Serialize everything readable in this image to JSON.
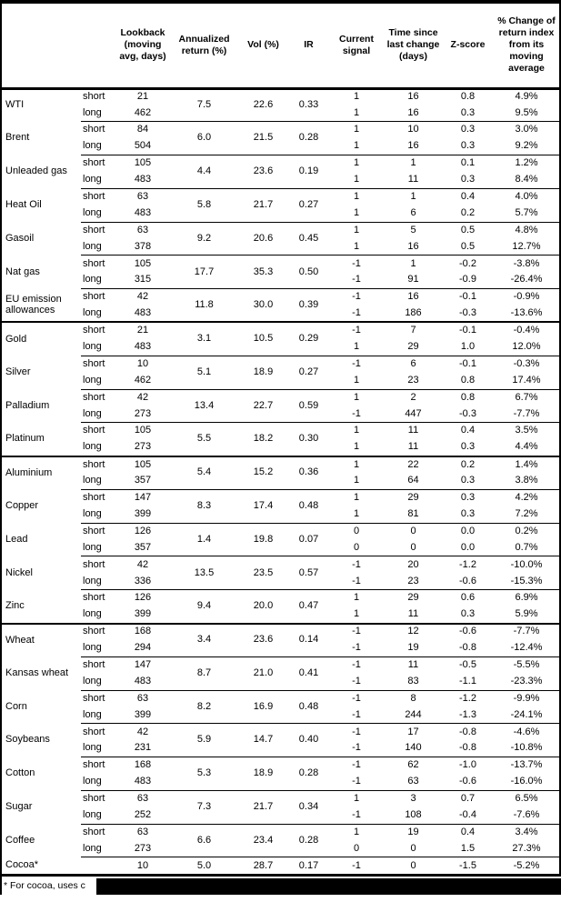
{
  "colors": {
    "background": "#ffffff",
    "text": "#000000",
    "border": "#000000",
    "redaction_bar": "#000000"
  },
  "columns": {
    "lookback": "Lookback (moving avg, days)",
    "annualized_return": "Annualized return (%)",
    "vol": "Vol (%)",
    "ir": "IR",
    "current_signal": "Current signal",
    "time_since": "Time since last change (days)",
    "zscore": "Z-score",
    "pct_change": "% Change of return index from its moving average"
  },
  "groups": [
    {
      "commodities": [
        {
          "name": "WTI",
          "annualized_return": "7.5",
          "vol": "22.6",
          "ir": "0.33",
          "rows": [
            {
              "horizon": "short",
              "lookback": "21",
              "signal": "1",
              "days": "16",
              "zscore": "0.8",
              "pct_change": "4.9%"
            },
            {
              "horizon": "long",
              "lookback": "462",
              "signal": "1",
              "days": "16",
              "zscore": "0.3",
              "pct_change": "9.5%"
            }
          ]
        },
        {
          "name": "Brent",
          "annualized_return": "6.0",
          "vol": "21.5",
          "ir": "0.28",
          "rows": [
            {
              "horizon": "short",
              "lookback": "84",
              "signal": "1",
              "days": "10",
              "zscore": "0.3",
              "pct_change": "3.0%"
            },
            {
              "horizon": "long",
              "lookback": "504",
              "signal": "1",
              "days": "16",
              "zscore": "0.3",
              "pct_change": "9.2%"
            }
          ]
        },
        {
          "name": "Unleaded gas",
          "annualized_return": "4.4",
          "vol": "23.6",
          "ir": "0.19",
          "rows": [
            {
              "horizon": "short",
              "lookback": "105",
              "signal": "1",
              "days": "1",
              "zscore": "0.1",
              "pct_change": "1.2%"
            },
            {
              "horizon": "long",
              "lookback": "483",
              "signal": "1",
              "days": "11",
              "zscore": "0.3",
              "pct_change": "8.4%"
            }
          ]
        },
        {
          "name": "Heat Oil",
          "annualized_return": "5.8",
          "vol": "21.7",
          "ir": "0.27",
          "rows": [
            {
              "horizon": "short",
              "lookback": "63",
              "signal": "1",
              "days": "1",
              "zscore": "0.4",
              "pct_change": "4.0%"
            },
            {
              "horizon": "long",
              "lookback": "483",
              "signal": "1",
              "days": "6",
              "zscore": "0.2",
              "pct_change": "5.7%"
            }
          ]
        },
        {
          "name": "Gasoil",
          "annualized_return": "9.2",
          "vol": "20.6",
          "ir": "0.45",
          "rows": [
            {
              "horizon": "short",
              "lookback": "63",
              "signal": "1",
              "days": "5",
              "zscore": "0.5",
              "pct_change": "4.8%"
            },
            {
              "horizon": "long",
              "lookback": "378",
              "signal": "1",
              "days": "16",
              "zscore": "0.5",
              "pct_change": "12.7%"
            }
          ]
        },
        {
          "name": "Nat gas",
          "annualized_return": "17.7",
          "vol": "35.3",
          "ir": "0.50",
          "rows": [
            {
              "horizon": "short",
              "lookback": "105",
              "signal": "-1",
              "days": "1",
              "zscore": "-0.2",
              "pct_change": "-3.8%"
            },
            {
              "horizon": "long",
              "lookback": "315",
              "signal": "-1",
              "days": "91",
              "zscore": "-0.9",
              "pct_change": "-26.4%"
            }
          ]
        },
        {
          "name": "EU emission allowances",
          "annualized_return": "11.8",
          "vol": "30.0",
          "ir": "0.39",
          "rows": [
            {
              "horizon": "short",
              "lookback": "42",
              "signal": "-1",
              "days": "16",
              "zscore": "-0.1",
              "pct_change": "-0.9%"
            },
            {
              "horizon": "long",
              "lookback": "483",
              "signal": "-1",
              "days": "186",
              "zscore": "-0.3",
              "pct_change": "-13.6%"
            }
          ]
        }
      ]
    },
    {
      "commodities": [
        {
          "name": "Gold",
          "annualized_return": "3.1",
          "vol": "10.5",
          "ir": "0.29",
          "rows": [
            {
              "horizon": "short",
              "lookback": "21",
              "signal": "-1",
              "days": "7",
              "zscore": "-0.1",
              "pct_change": "-0.4%"
            },
            {
              "horizon": "long",
              "lookback": "483",
              "signal": "1",
              "days": "29",
              "zscore": "1.0",
              "pct_change": "12.0%"
            }
          ]
        },
        {
          "name": "Silver",
          "annualized_return": "5.1",
          "vol": "18.9",
          "ir": "0.27",
          "rows": [
            {
              "horizon": "short",
              "lookback": "10",
              "signal": "-1",
              "days": "6",
              "zscore": "-0.1",
              "pct_change": "-0.3%"
            },
            {
              "horizon": "long",
              "lookback": "462",
              "signal": "1",
              "days": "23",
              "zscore": "0.8",
              "pct_change": "17.4%"
            }
          ]
        },
        {
          "name": "Palladium",
          "annualized_return": "13.4",
          "vol": "22.7",
          "ir": "0.59",
          "rows": [
            {
              "horizon": "short",
              "lookback": "42",
              "signal": "1",
              "days": "2",
              "zscore": "0.8",
              "pct_change": "6.7%"
            },
            {
              "horizon": "long",
              "lookback": "273",
              "signal": "-1",
              "days": "447",
              "zscore": "-0.3",
              "pct_change": "-7.7%"
            }
          ]
        },
        {
          "name": "Platinum",
          "annualized_return": "5.5",
          "vol": "18.2",
          "ir": "0.30",
          "rows": [
            {
              "horizon": "short",
              "lookback": "105",
              "signal": "1",
              "days": "11",
              "zscore": "0.4",
              "pct_change": "3.5%"
            },
            {
              "horizon": "long",
              "lookback": "273",
              "signal": "1",
              "days": "11",
              "zscore": "0.3",
              "pct_change": "4.4%"
            }
          ]
        }
      ]
    },
    {
      "commodities": [
        {
          "name": "Aluminium",
          "annualized_return": "5.4",
          "vol": "15.2",
          "ir": "0.36",
          "rows": [
            {
              "horizon": "short",
              "lookback": "105",
              "signal": "1",
              "days": "22",
              "zscore": "0.2",
              "pct_change": "1.4%"
            },
            {
              "horizon": "long",
              "lookback": "357",
              "signal": "1",
              "days": "64",
              "zscore": "0.3",
              "pct_change": "3.8%"
            }
          ]
        },
        {
          "name": "Copper",
          "annualized_return": "8.3",
          "vol": "17.4",
          "ir": "0.48",
          "rows": [
            {
              "horizon": "short",
              "lookback": "147",
              "signal": "1",
              "days": "29",
              "zscore": "0.3",
              "pct_change": "4.2%"
            },
            {
              "horizon": "long",
              "lookback": "399",
              "signal": "1",
              "days": "81",
              "zscore": "0.3",
              "pct_change": "7.2%"
            }
          ]
        },
        {
          "name": "Lead",
          "annualized_return": "1.4",
          "vol": "19.8",
          "ir": "0.07",
          "rows": [
            {
              "horizon": "short",
              "lookback": "126",
              "signal": "0",
              "days": "0",
              "zscore": "0.0",
              "pct_change": "0.2%"
            },
            {
              "horizon": "long",
              "lookback": "357",
              "signal": "0",
              "days": "0",
              "zscore": "0.0",
              "pct_change": "0.7%"
            }
          ]
        },
        {
          "name": "Nickel",
          "annualized_return": "13.5",
          "vol": "23.5",
          "ir": "0.57",
          "rows": [
            {
              "horizon": "short",
              "lookback": "42",
              "signal": "-1",
              "days": "20",
              "zscore": "-1.2",
              "pct_change": "-10.0%"
            },
            {
              "horizon": "long",
              "lookback": "336",
              "signal": "-1",
              "days": "23",
              "zscore": "-0.6",
              "pct_change": "-15.3%"
            }
          ]
        },
        {
          "name": "Zinc",
          "annualized_return": "9.4",
          "vol": "20.0",
          "ir": "0.47",
          "rows": [
            {
              "horizon": "short",
              "lookback": "126",
              "signal": "1",
              "days": "29",
              "zscore": "0.6",
              "pct_change": "6.9%"
            },
            {
              "horizon": "long",
              "lookback": "399",
              "signal": "1",
              "days": "11",
              "zscore": "0.3",
              "pct_change": "5.9%"
            }
          ]
        }
      ]
    },
    {
      "commodities": [
        {
          "name": "Wheat",
          "annualized_return": "3.4",
          "vol": "23.6",
          "ir": "0.14",
          "rows": [
            {
              "horizon": "short",
              "lookback": "168",
              "signal": "-1",
              "days": "12",
              "zscore": "-0.6",
              "pct_change": "-7.7%"
            },
            {
              "horizon": "long",
              "lookback": "294",
              "signal": "-1",
              "days": "19",
              "zscore": "-0.8",
              "pct_change": "-12.4%"
            }
          ]
        },
        {
          "name": "Kansas wheat",
          "annualized_return": "8.7",
          "vol": "21.0",
          "ir": "0.41",
          "rows": [
            {
              "horizon": "short",
              "lookback": "147",
              "signal": "-1",
              "days": "11",
              "zscore": "-0.5",
              "pct_change": "-5.5%"
            },
            {
              "horizon": "long",
              "lookback": "483",
              "signal": "-1",
              "days": "83",
              "zscore": "-1.1",
              "pct_change": "-23.3%"
            }
          ]
        },
        {
          "name": "Corn",
          "annualized_return": "8.2",
          "vol": "16.9",
          "ir": "0.48",
          "rows": [
            {
              "horizon": "short",
              "lookback": "63",
              "signal": "-1",
              "days": "8",
              "zscore": "-1.2",
              "pct_change": "-9.9%"
            },
            {
              "horizon": "long",
              "lookback": "399",
              "signal": "-1",
              "days": "244",
              "zscore": "-1.3",
              "pct_change": "-24.1%"
            }
          ]
        },
        {
          "name": "Soybeans",
          "annualized_return": "5.9",
          "vol": "14.7",
          "ir": "0.40",
          "rows": [
            {
              "horizon": "short",
              "lookback": "42",
              "signal": "-1",
              "days": "17",
              "zscore": "-0.8",
              "pct_change": "-4.6%"
            },
            {
              "horizon": "long",
              "lookback": "231",
              "signal": "-1",
              "days": "140",
              "zscore": "-0.8",
              "pct_change": "-10.8%"
            }
          ]
        },
        {
          "name": "Cotton",
          "annualized_return": "5.3",
          "vol": "18.9",
          "ir": "0.28",
          "rows": [
            {
              "horizon": "short",
              "lookback": "168",
              "signal": "-1",
              "days": "62",
              "zscore": "-1.0",
              "pct_change": "-13.7%"
            },
            {
              "horizon": "long",
              "lookback": "483",
              "signal": "-1",
              "days": "63",
              "zscore": "-0.6",
              "pct_change": "-16.0%"
            }
          ]
        },
        {
          "name": "Sugar",
          "annualized_return": "7.3",
          "vol": "21.7",
          "ir": "0.34",
          "rows": [
            {
              "horizon": "short",
              "lookback": "63",
              "signal": "1",
              "days": "3",
              "zscore": "0.7",
              "pct_change": "6.5%"
            },
            {
              "horizon": "long",
              "lookback": "252",
              "signal": "-1",
              "days": "108",
              "zscore": "-0.4",
              "pct_change": "-7.6%"
            }
          ]
        },
        {
          "name": "Coffee",
          "annualized_return": "6.6",
          "vol": "23.4",
          "ir": "0.28",
          "rows": [
            {
              "horizon": "short",
              "lookback": "63",
              "signal": "1",
              "days": "19",
              "zscore": "0.4",
              "pct_change": "3.4%"
            },
            {
              "horizon": "long",
              "lookback": "273",
              "signal": "0",
              "days": "0",
              "zscore": "1.5",
              "pct_change": "27.3%"
            }
          ]
        },
        {
          "name": "Cocoa*",
          "annualized_return": "5.0",
          "vol": "28.7",
          "ir": "0.17",
          "rows": [
            {
              "horizon": "",
              "lookback": "10",
              "signal": "-1",
              "days": "0",
              "zscore": "-1.5",
              "pct_change": "-5.2%"
            }
          ]
        }
      ]
    }
  ],
  "footnote": "* For cocoa, uses c"
}
